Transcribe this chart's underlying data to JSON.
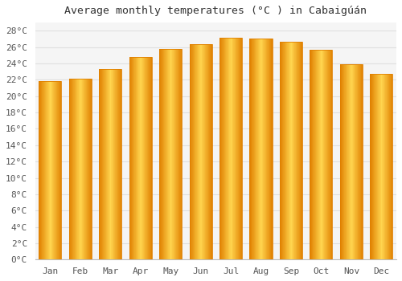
{
  "title": "Average monthly temperatures (°C ) in Cabaigúán",
  "months": [
    "Jan",
    "Feb",
    "Mar",
    "Apr",
    "May",
    "Jun",
    "Jul",
    "Aug",
    "Sep",
    "Oct",
    "Nov",
    "Dec"
  ],
  "temperatures": [
    21.8,
    22.1,
    23.3,
    24.8,
    25.8,
    26.4,
    27.1,
    27.0,
    26.6,
    25.7,
    23.9,
    22.7
  ],
  "bar_color_center": "#FFD54F",
  "bar_color_edge": "#E08000",
  "background_color": "#FFFFFF",
  "plot_bg_color": "#F5F5F5",
  "grid_color": "#E0E0E0",
  "ylim": [
    0,
    29
  ],
  "ytick_step": 2,
  "title_fontsize": 9.5,
  "tick_fontsize": 8,
  "font_family": "monospace"
}
